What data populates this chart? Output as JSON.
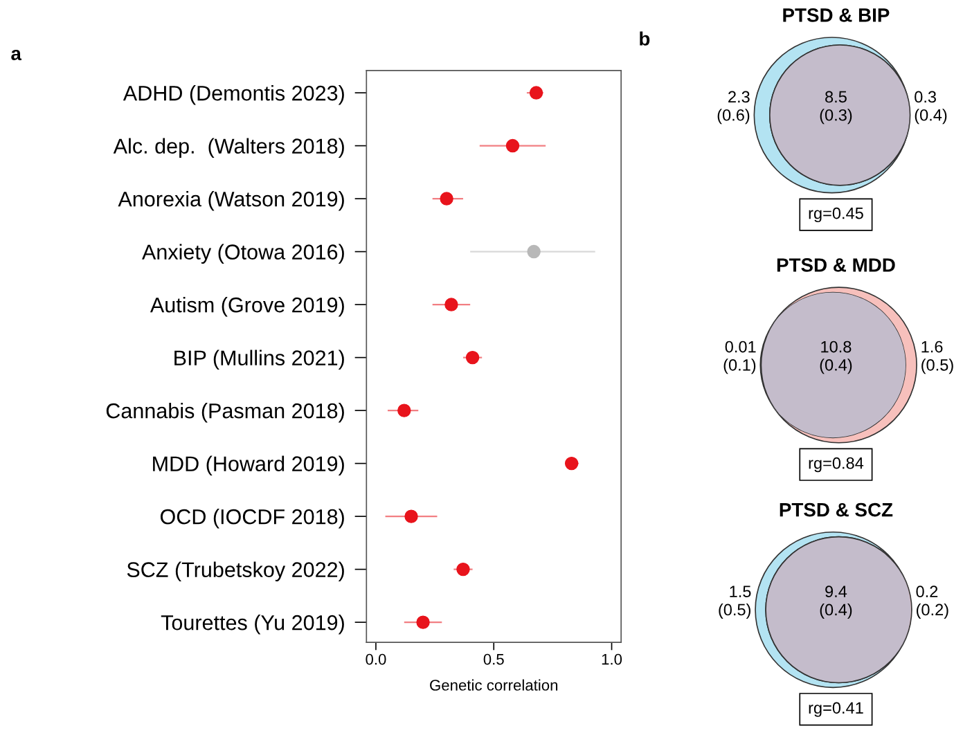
{
  "chart_data": [
    {
      "type": "scatter",
      "orientation": "horizontal",
      "marker": "circle",
      "grid": false,
      "xlabel": "Genetic correlation",
      "categories": [
        "ADHD (Demontis 2023)",
        "Alc. dep.  (Walters 2018)",
        "Anorexia (Watson 2019)",
        "Anxiety (Otowa 2016)",
        "Autism (Grove 2019)",
        "BIP (Mullins 2021)",
        "Cannabis (Pasman 2018)",
        "MDD (Howard 2019)",
        "OCD (IOCDF 2018)",
        "SCZ (Trubetskoy 2022)",
        "Tourettes (Yu 2019)"
      ],
      "values": [
        0.68,
        0.58,
        0.3,
        0.67,
        0.32,
        0.41,
        0.12,
        0.83,
        0.15,
        0.37,
        0.2
      ],
      "errors": [
        [
          0.64,
          0.71
        ],
        [
          0.44,
          0.72
        ],
        [
          0.24,
          0.37
        ],
        [
          0.4,
          0.93
        ],
        [
          0.24,
          0.4
        ],
        [
          0.37,
          0.45
        ],
        [
          0.05,
          0.18
        ],
        [
          0.81,
          0.86
        ],
        [
          0.04,
          0.26
        ],
        [
          0.33,
          0.41
        ],
        [
          0.12,
          0.28
        ]
      ],
      "colors": [
        "#e8141c",
        "#e8141c",
        "#e8141c",
        "#b8b8b8",
        "#e8141c",
        "#e8141c",
        "#e8141c",
        "#e8141c",
        "#e8141c",
        "#e8141c",
        "#e8141c"
      ],
      "xlim": [
        -0.04,
        1.04
      ],
      "xticks": [
        {
          "value": 0,
          "label": "0.0"
        },
        {
          "value": 0.5,
          "label": "0.5"
        },
        {
          "value": 1,
          "label": "1.0"
        }
      ],
      "annotations": [
        "a"
      ]
    },
    {
      "type": "other",
      "title": "PTSD & BIP",
      "categories": [
        null,
        null,
        null
      ],
      "values": [
        2.3,
        8.5,
        0.3
      ],
      "value_labels": [
        "2.3\n(0.6)",
        "8.5\n(0.3)",
        "0.3\n(0.4)"
      ],
      "colors": [
        "#b3e3f2",
        "#c4bccb",
        "#f7c0bc"
      ],
      "annotations": [
        "rg=0.45",
        "b"
      ]
    },
    {
      "type": "other",
      "title": "PTSD & MDD",
      "categories": [
        null,
        null,
        null
      ],
      "values": [
        0.01,
        10.8,
        1.6
      ],
      "value_labels": [
        "0.01\n(0.1)",
        "10.8\n(0.4)",
        "1.6\n(0.5)"
      ],
      "colors": [
        "#b3e3f2",
        "#c4bccb",
        "#f7c0bc"
      ],
      "annotations": [
        "rg=0.84"
      ]
    },
    {
      "type": "other",
      "title": "PTSD & SCZ",
      "categories": [
        null,
        null,
        null
      ],
      "values": [
        1.5,
        9.4,
        0.2
      ],
      "value_labels": [
        "1.5\n(0.5)",
        "9.4\n(0.4)",
        "0.2\n(0.2)"
      ],
      "colors": [
        "#b3e3f2",
        "#c4bccb",
        "#f7c0bc"
      ],
      "annotations": [
        "rg=0.41"
      ]
    }
  ]
}
